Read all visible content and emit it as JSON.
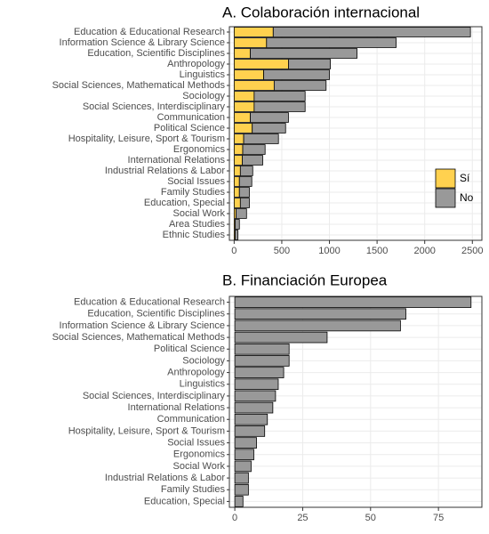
{
  "chart_data": [
    {
      "type": "bar",
      "orientation": "horizontal",
      "stacked": true,
      "title": "A. Colaboración internacional",
      "categories": [
        "Education & Educational Research",
        "Information Science & Library Science",
        "Education, Scientific Disciplines",
        "Anthropology",
        "Linguistics",
        "Social Sciences, Mathematical Methods",
        "Sociology",
        "Social Sciences, Interdisciplinary",
        "Communication",
        "Political Science",
        "Hospitality, Leisure, Sport & Tourism",
        "Ergonomics",
        "International Relations",
        "Industrial Relations & Labor",
        "Social Issues",
        "Family Studies",
        "Education, Special",
        "Social Work",
        "Area Studies",
        "Ethnic Studies"
      ],
      "series": [
        {
          "name": "Sí",
          "color": "#FFD14F",
          "values": [
            410,
            340,
            170,
            570,
            310,
            420,
            210,
            210,
            170,
            190,
            100,
            90,
            85,
            65,
            55,
            55,
            65,
            20,
            10,
            10
          ]
        },
        {
          "name": "No",
          "color": "#999999",
          "values": [
            2070,
            1360,
            1120,
            440,
            690,
            545,
            535,
            535,
            400,
            350,
            365,
            235,
            215,
            130,
            130,
            105,
            95,
            110,
            45,
            30
          ]
        }
      ],
      "xlim": [
        -50,
        2600
      ],
      "xticks": [
        0,
        500,
        1000,
        1500,
        2000,
        2500
      ],
      "grid": true,
      "legend": "right"
    },
    {
      "type": "bar",
      "orientation": "horizontal",
      "title": "B. Financiación Europea",
      "categories": [
        "Education & Educational Research",
        "Education, Scientific Disciplines",
        "Information Science & Library Science",
        "Social Sciences, Mathematical Methods",
        "Political Science",
        "Sociology",
        "Anthropology",
        "Linguistics",
        "Social Sciences, Interdisciplinary",
        "International Relations",
        "Communication",
        "Hospitality, Leisure, Sport & Tourism",
        "Social Issues",
        "Ergonomics",
        "Social Work",
        "Industrial Relations & Labor",
        "Family Studies",
        "Education, Special"
      ],
      "values": [
        87,
        63,
        61,
        34,
        20,
        20,
        18,
        16,
        15,
        14,
        12,
        11,
        8,
        7,
        6,
        5,
        5,
        3
      ],
      "color": "#999999",
      "xlim": [
        -2,
        91
      ],
      "xticks": [
        0,
        25,
        50,
        75
      ],
      "grid": true
    }
  ]
}
